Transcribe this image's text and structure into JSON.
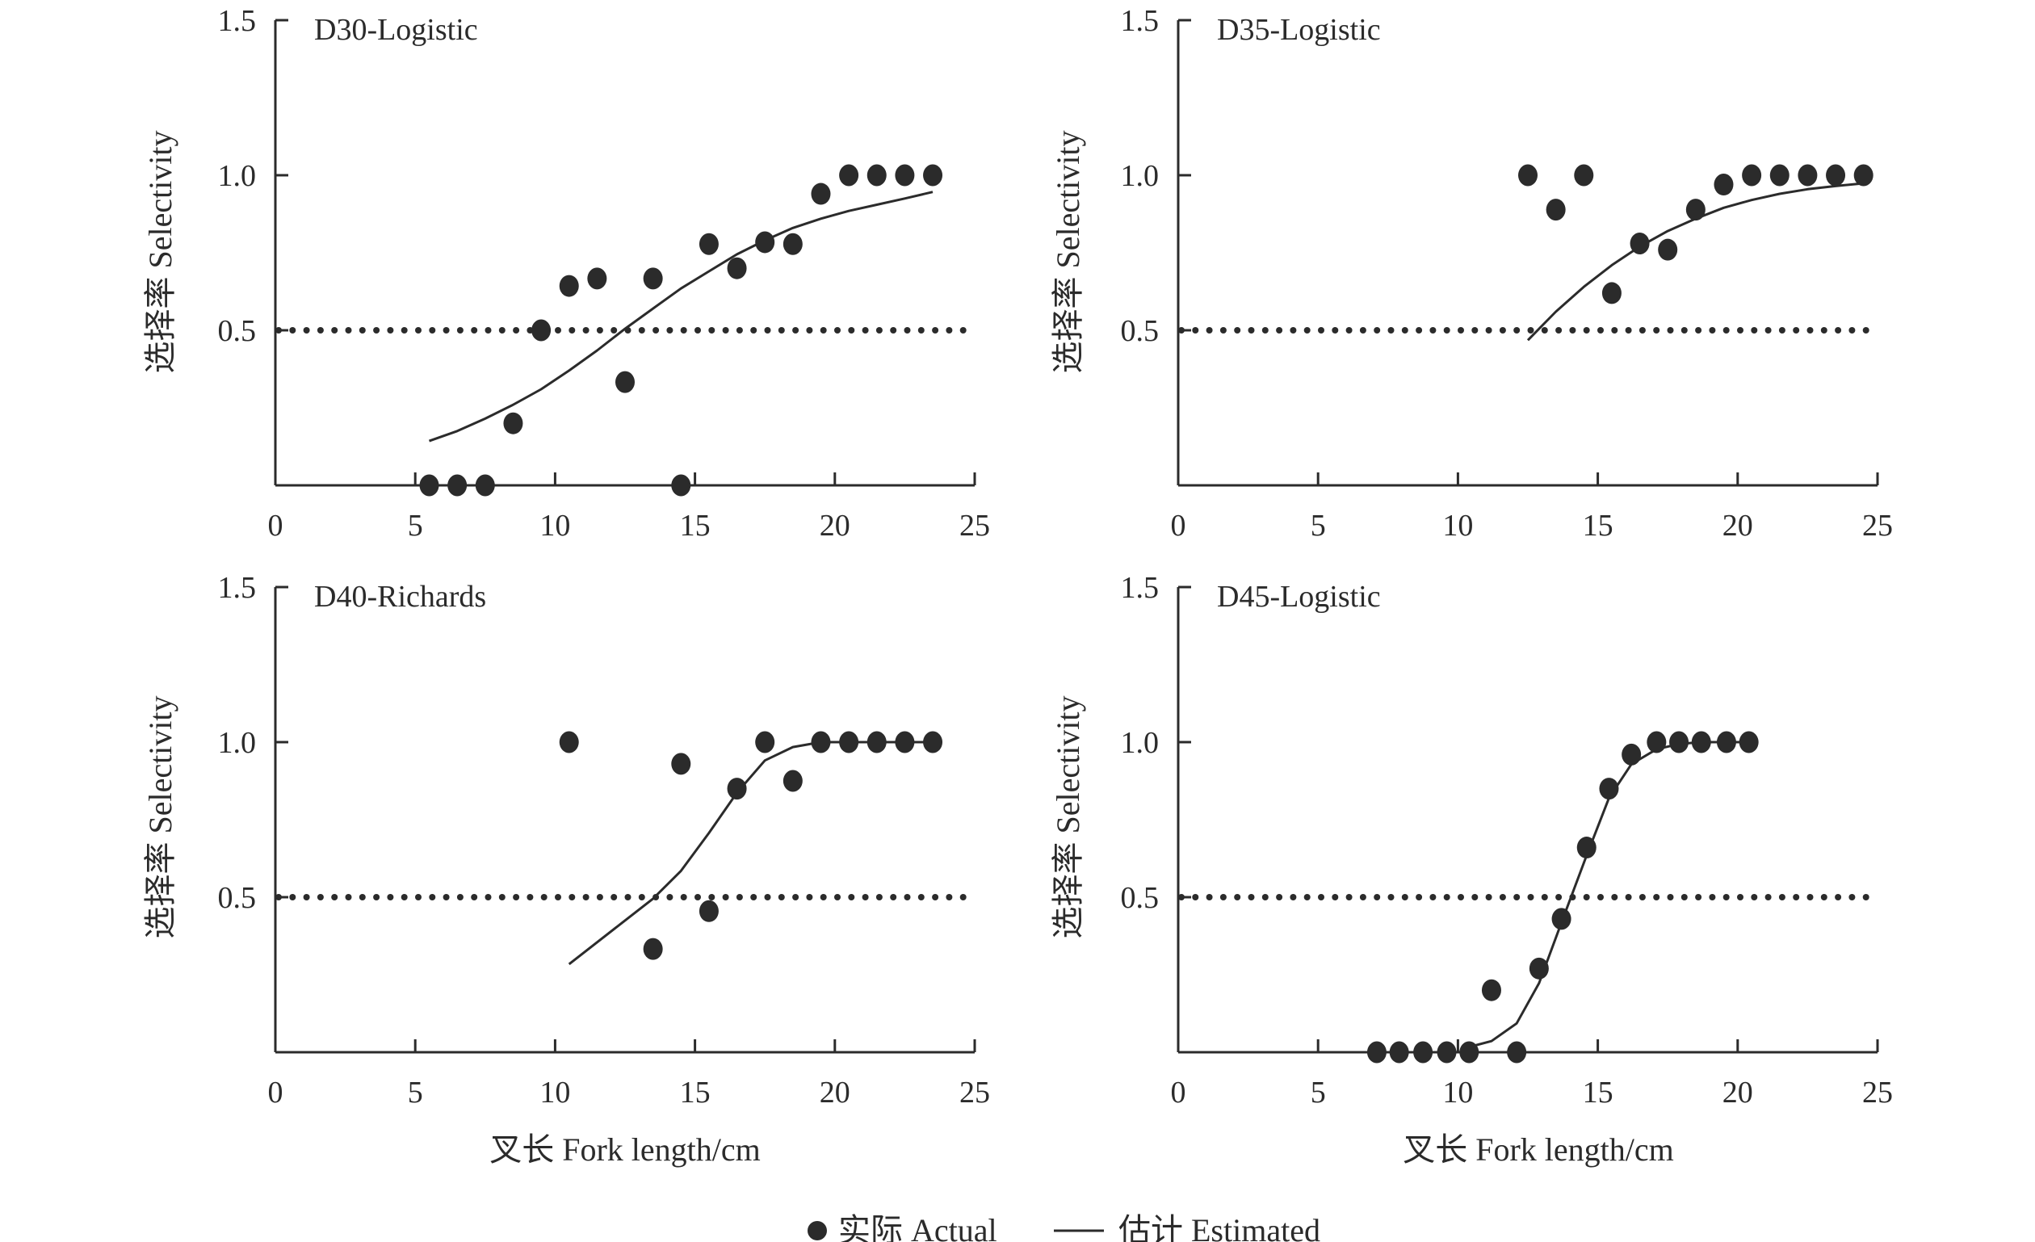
{
  "chart_data": [
    {
      "type": "scatter",
      "title": "D30-Logistic",
      "xlabel": "",
      "ylabel": "选择率 Selectivity",
      "xlim": [
        0,
        25
      ],
      "ylim": [
        0,
        1.5
      ],
      "xticks": [
        "0",
        "5",
        "10",
        "15",
        "20",
        "25"
      ],
      "yticks": [
        "0.5",
        "1.0",
        "1.5"
      ],
      "reference_line": 0.5,
      "series": [
        {
          "name": "实际 Actual",
          "kind": "points",
          "x": [
            5.5,
            6.5,
            7.5,
            8.5,
            9.5,
            10.5,
            11.5,
            12.5,
            13.5,
            14.5,
            15.5,
            16.5,
            17.5,
            18.5,
            19.5,
            20.5,
            21.5,
            22.5,
            23.5
          ],
          "y": [
            0,
            0,
            0,
            0.2,
            0.5,
            0.643,
            0.667,
            0.333,
            0.667,
            0,
            0.778,
            0.7,
            0.784,
            0.778,
            0.94,
            1.0,
            1.0,
            1.0,
            1.0
          ]
        },
        {
          "name": "估计 Estimated",
          "kind": "line",
          "x": [
            5.5,
            6.5,
            7.5,
            8.5,
            9.5,
            10.5,
            11.5,
            12.5,
            13.5,
            14.5,
            15.5,
            16.5,
            17.5,
            18.5,
            19.5,
            20.5,
            21.5,
            22.5,
            23.5
          ],
          "y": [
            0.143,
            0.175,
            0.215,
            0.26,
            0.31,
            0.37,
            0.435,
            0.505,
            0.57,
            0.635,
            0.69,
            0.745,
            0.79,
            0.83,
            0.86,
            0.885,
            0.905,
            0.925,
            0.946
          ]
        }
      ]
    },
    {
      "type": "scatter",
      "title": "D35-Logistic",
      "xlabel": "",
      "ylabel": "选择率 Selectivity",
      "xlim": [
        0,
        25
      ],
      "ylim": [
        0,
        1.5
      ],
      "xticks": [
        "0",
        "5",
        "10",
        "15",
        "20",
        "25"
      ],
      "yticks": [
        "0.5",
        "1.0",
        "1.5"
      ],
      "reference_line": 0.5,
      "series": [
        {
          "name": "实际 Actual",
          "kind": "points",
          "x": [
            12.5,
            13.5,
            14.5,
            15.5,
            16.5,
            17.5,
            18.5,
            19.5,
            20.5,
            21.5,
            22.5,
            23.5,
            24.5
          ],
          "y": [
            1.0,
            0.889,
            1.0,
            0.62,
            0.78,
            0.76,
            0.889,
            0.97,
            1.0,
            1.0,
            1.0,
            1.0,
            1.0
          ]
        },
        {
          "name": "估计 Estimated",
          "kind": "line",
          "x": [
            12.5,
            13.5,
            14.5,
            15.5,
            16.5,
            17.5,
            18.5,
            19.5,
            20.5,
            21.5,
            22.5,
            23.5,
            24.5
          ],
          "y": [
            0.468,
            0.56,
            0.64,
            0.71,
            0.77,
            0.82,
            0.86,
            0.895,
            0.92,
            0.94,
            0.955,
            0.965,
            0.974
          ]
        }
      ]
    },
    {
      "type": "scatter",
      "title": "D40-Richards",
      "xlabel": "叉长 Fork length/cm",
      "ylabel": "选择率 Selectivity",
      "xlim": [
        0,
        25
      ],
      "ylim": [
        0,
        1.5
      ],
      "xticks": [
        "0",
        "5",
        "10",
        "15",
        "20",
        "25"
      ],
      "yticks": [
        "0.5",
        "1.0",
        "1.5"
      ],
      "reference_line": 0.5,
      "series": [
        {
          "name": "实际 Actual",
          "kind": "points",
          "x": [
            10.5,
            13.5,
            14.5,
            15.5,
            16.5,
            17.5,
            18.5,
            19.5,
            20.5,
            21.5,
            22.5,
            23.5
          ],
          "y": [
            1.0,
            0.333,
            0.93,
            0.455,
            0.85,
            1.0,
            0.875,
            1.0,
            1.0,
            1.0,
            1.0,
            1.0
          ]
        },
        {
          "name": "估计 Estimated",
          "kind": "line",
          "x": [
            10.5,
            13.5,
            14.5,
            15.5,
            16.5,
            17.5,
            18.5,
            19.5,
            20.5,
            21.5,
            22.5,
            23.5
          ],
          "y": [
            0.284,
            0.495,
            0.585,
            0.707,
            0.837,
            0.941,
            0.984,
            1.0,
            1.0,
            1.0,
            1.0,
            1.0
          ]
        }
      ]
    },
    {
      "type": "scatter",
      "title": "D45-Logistic",
      "xlabel": "叉长 Fork length/cm",
      "ylabel": "选择率 Selectivity",
      "xlim": [
        0,
        25
      ],
      "ylim": [
        0,
        1.5
      ],
      "xticks": [
        "0",
        "5",
        "10",
        "15",
        "20",
        "25"
      ],
      "yticks": [
        "0.5",
        "1.0",
        "1.5"
      ],
      "reference_line": 0.5,
      "series": [
        {
          "name": "实际 Actual",
          "kind": "points",
          "x": [
            7.1,
            7.9,
            8.75,
            9.6,
            10.4,
            11.2,
            12.1,
            12.9,
            13.7,
            14.6,
            15.4,
            16.2,
            17.1,
            17.9,
            18.7,
            19.6,
            20.4
          ],
          "y": [
            0,
            0,
            0,
            0,
            0,
            0.2,
            0,
            0.27,
            0.43,
            0.66,
            0.85,
            0.96,
            1.0,
            1.0,
            1.0,
            1.0,
            1.0
          ]
        },
        {
          "name": "估计 Estimated",
          "kind": "line",
          "x": [
            10.4,
            11.2,
            12.1,
            12.9,
            13.7,
            14.6,
            15.4,
            16.2,
            17.1,
            17.9,
            18.7,
            19.6,
            20.4
          ],
          "y": [
            0.017,
            0.036,
            0.093,
            0.223,
            0.418,
            0.634,
            0.82,
            0.929,
            0.977,
            0.994,
            1.0,
            1.0,
            1.0
          ]
        }
      ]
    }
  ],
  "legend": {
    "actual_label": "实际 Actual",
    "estimated_label": "估计 Estimated",
    "placement": "bottom-center"
  },
  "colors": {
    "ink": "#2b2b2b"
  }
}
